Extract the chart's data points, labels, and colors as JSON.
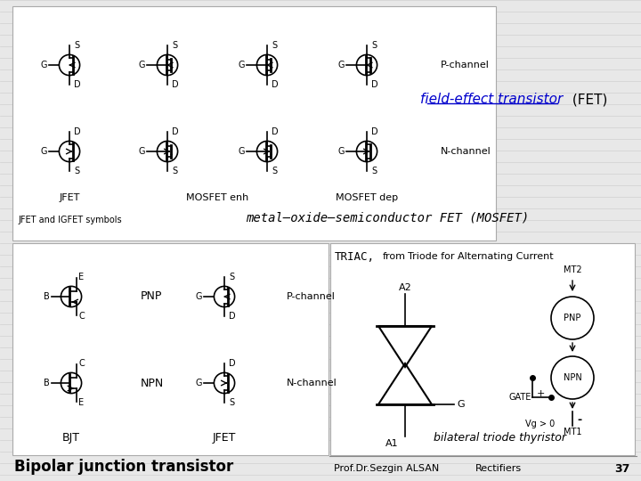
{
  "bg_color": "#e8e8e8",
  "grid_line_color": "#d0d0d0",
  "title_fet": "field-effect transistor",
  "title_fet_suffix": " (FET)",
  "title_mosfet": "metal–oxide–semiconductor FET (MOSFET)",
  "label_jfet_igfet": "JFET and IGFET symbols",
  "label_bjt_junction": "Bipolar junction transistor",
  "label_bilateral": "bilateral triode thyristor",
  "footer_author": "Prof.Dr.Sezgin ALSAN",
  "footer_subject": "Rectifiers",
  "footer_page": "37",
  "accent_blue": "#0000cc",
  "line_color": "#000000"
}
